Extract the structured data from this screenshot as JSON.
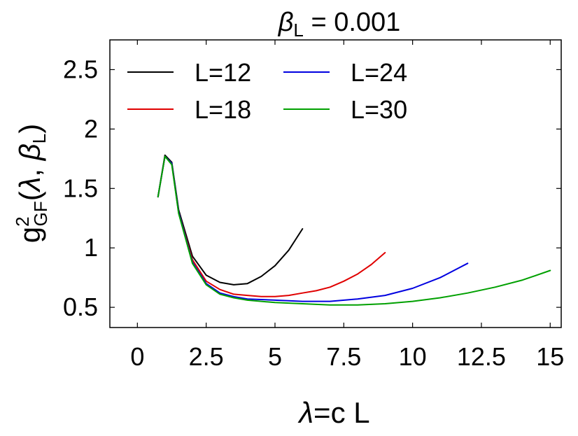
{
  "chart_data": {
    "type": "line",
    "title": {
      "symbol": "β",
      "sub": "L",
      "rest": " = 0.001"
    },
    "xlabel": {
      "symbol": "λ",
      "rest": "=c L"
    },
    "ylabel": {
      "base": "g",
      "sup": "2",
      "sub": "GF",
      "open": "(",
      "lambda": "λ",
      "comma": ", ",
      "beta": "β",
      "beta_sub": "L",
      "close": ")"
    },
    "xlim": [
      -1,
      15.4
    ],
    "ylim": [
      0.33,
      2.75
    ],
    "xticks": [
      {
        "value": 0,
        "label": "0"
      },
      {
        "value": 2.5,
        "label": "2.5"
      },
      {
        "value": 5,
        "label": "5"
      },
      {
        "value": 7.5,
        "label": "7.5"
      },
      {
        "value": 10,
        "label": "10"
      },
      {
        "value": 12.5,
        "label": "12.5"
      },
      {
        "value": 15,
        "label": "15"
      }
    ],
    "yticks": [
      {
        "value": 0.5,
        "label": "0.5"
      },
      {
        "value": 1,
        "label": "1"
      },
      {
        "value": 1.5,
        "label": "1.5"
      },
      {
        "value": 2,
        "label": "2"
      },
      {
        "value": 2.5,
        "label": "2.5"
      }
    ],
    "legend_position": "top-left",
    "grid": false,
    "series": [
      {
        "name": "L=12",
        "color": "#000000",
        "x": [
          0.75,
          1.0,
          1.25,
          1.5,
          2.0,
          2.5,
          3.0,
          3.5,
          4.0,
          4.5,
          5.0,
          5.5,
          6.0
        ],
        "y": [
          1.43,
          1.78,
          1.72,
          1.32,
          0.93,
          0.77,
          0.71,
          0.69,
          0.7,
          0.76,
          0.85,
          0.98,
          1.16
        ]
      },
      {
        "name": "L=18",
        "color": "#e00000",
        "x": [
          0.75,
          1.0,
          1.25,
          1.5,
          2.0,
          2.5,
          3.0,
          3.5,
          4.0,
          4.5,
          5.0,
          5.5,
          6.0,
          6.5,
          7.0,
          7.5,
          8.0,
          8.5,
          9.0
        ],
        "y": [
          1.43,
          1.77,
          1.71,
          1.3,
          0.9,
          0.72,
          0.65,
          0.61,
          0.6,
          0.59,
          0.59,
          0.6,
          0.62,
          0.64,
          0.67,
          0.72,
          0.78,
          0.86,
          0.96
        ]
      },
      {
        "name": "L=24",
        "color": "#0000e0",
        "x": [
          0.75,
          1.0,
          1.25,
          1.5,
          2.0,
          2.5,
          3.0,
          3.5,
          4.0,
          5.0,
          6.0,
          7.0,
          8.0,
          9.0,
          10.0,
          11.0,
          12.0
        ],
        "y": [
          1.43,
          1.77,
          1.71,
          1.3,
          0.88,
          0.7,
          0.62,
          0.59,
          0.57,
          0.56,
          0.55,
          0.55,
          0.57,
          0.6,
          0.66,
          0.75,
          0.87
        ]
      },
      {
        "name": "L=30",
        "color": "#00a000",
        "x": [
          0.75,
          1.0,
          1.25,
          1.5,
          2.0,
          2.5,
          3.0,
          3.5,
          4.0,
          5.0,
          6.0,
          7.0,
          8.0,
          9.0,
          10.0,
          11.0,
          12.0,
          13.0,
          14.0,
          15.0
        ],
        "y": [
          1.43,
          1.77,
          1.7,
          1.29,
          0.87,
          0.69,
          0.61,
          0.58,
          0.56,
          0.54,
          0.53,
          0.52,
          0.52,
          0.53,
          0.55,
          0.58,
          0.62,
          0.67,
          0.73,
          0.81
        ]
      }
    ]
  }
}
